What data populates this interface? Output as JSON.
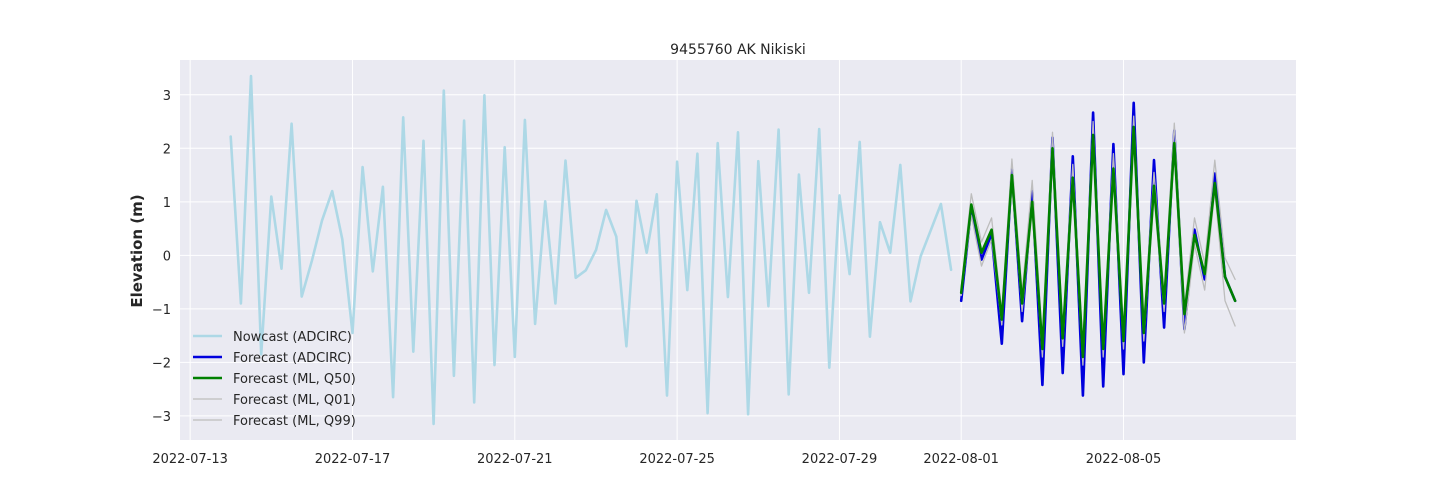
{
  "chart_data": {
    "type": "line",
    "title": "9455760 AK Nikiski",
    "xlabel": "",
    "ylabel": "Elevation (m)",
    "xlim": [
      "2022-07-12T18:00",
      "2022-08-09T06:00"
    ],
    "ylim": [
      -3.45,
      3.65
    ],
    "xticks": [
      "2022-07-13",
      "2022-07-17",
      "2022-07-21",
      "2022-07-25",
      "2022-07-29",
      "2022-08-01",
      "2022-08-05"
    ],
    "yticks": [
      -3,
      -2,
      -1,
      0,
      1,
      2,
      3
    ],
    "ytick_labels": [
      "−3",
      "−2",
      "−1",
      "0",
      "1",
      "2",
      "3"
    ],
    "grid": true,
    "background_color": "#eaeaf2",
    "legend": {
      "position": "lower-left"
    },
    "series": [
      {
        "name": "Nowcast (ADCIRC)",
        "color": "#add8e6",
        "style": "thick",
        "x": [
          "2022-07-14T00:00",
          "2022-07-14T06:00",
          "2022-07-14T12:00",
          "2022-07-14T18:00",
          "2022-07-15T00:00",
          "2022-07-15T06:00",
          "2022-07-15T12:00",
          "2022-07-15T18:00",
          "2022-07-16T00:00",
          "2022-07-16T06:00",
          "2022-07-16T12:00",
          "2022-07-16T18:00",
          "2022-07-17T00:00",
          "2022-07-17T06:00",
          "2022-07-17T12:00",
          "2022-07-17T18:00",
          "2022-07-18T00:00",
          "2022-07-18T06:00",
          "2022-07-18T12:00",
          "2022-07-18T18:00",
          "2022-07-19T00:00",
          "2022-07-19T06:00",
          "2022-07-19T12:00",
          "2022-07-19T18:00",
          "2022-07-20T00:00",
          "2022-07-20T06:00",
          "2022-07-20T12:00",
          "2022-07-20T18:00",
          "2022-07-21T00:00",
          "2022-07-21T06:00",
          "2022-07-21T12:00",
          "2022-07-21T18:00",
          "2022-07-22T00:00",
          "2022-07-22T06:00",
          "2022-07-22T12:00",
          "2022-07-22T18:00",
          "2022-07-23T00:00",
          "2022-07-23T06:00",
          "2022-07-23T12:00",
          "2022-07-23T18:00",
          "2022-07-24T00:00",
          "2022-07-24T06:00",
          "2022-07-24T12:00",
          "2022-07-24T18:00",
          "2022-07-25T00:00",
          "2022-07-25T06:00",
          "2022-07-25T12:00",
          "2022-07-25T18:00",
          "2022-07-26T00:00",
          "2022-07-26T06:00",
          "2022-07-26T12:00",
          "2022-07-26T18:00",
          "2022-07-27T00:00",
          "2022-07-27T06:00",
          "2022-07-27T12:00",
          "2022-07-27T18:00",
          "2022-07-28T00:00",
          "2022-07-28T06:00",
          "2022-07-28T12:00",
          "2022-07-28T18:00",
          "2022-07-29T00:00",
          "2022-07-29T06:00",
          "2022-07-29T12:00",
          "2022-07-29T18:00",
          "2022-07-30T00:00",
          "2022-07-30T06:00",
          "2022-07-30T12:00",
          "2022-07-30T18:00",
          "2022-07-31T00:00",
          "2022-07-31T06:00",
          "2022-07-31T12:00",
          "2022-07-31T18:00"
        ],
        "y": [
          2.22,
          -0.9,
          3.35,
          -1.85,
          1.1,
          -0.25,
          2.46,
          -0.77,
          -0.1,
          0.65,
          1.2,
          0.3,
          -1.45,
          1.65,
          -0.3,
          1.28,
          -2.65,
          2.58,
          -1.8,
          2.14,
          -3.15,
          3.08,
          -2.25,
          2.52,
          -2.75,
          2.99,
          -2.05,
          2.02,
          -1.9,
          2.53,
          -1.28,
          1.01,
          -0.9,
          1.77,
          -0.42,
          -0.28,
          0.1,
          0.85,
          0.35,
          -1.7,
          1.02,
          0.05,
          1.14,
          -2.62,
          1.75,
          -0.65,
          1.9,
          -2.95,
          2.1,
          -0.78,
          2.3,
          -2.97,
          1.76,
          -0.95,
          2.35,
          -2.6,
          1.51,
          -0.7,
          2.36,
          -2.1,
          1.12,
          -0.35,
          2.12,
          -1.52,
          0.62,
          0.05,
          1.69,
          -0.86,
          -0.02,
          0.47,
          0.96,
          -0.27
        ]
      },
      {
        "name": "Forecast (ADCIRC)",
        "color": "#0000dd",
        "style": "thick",
        "x": [
          "2022-08-01T00:00",
          "2022-08-01T06:00",
          "2022-08-01T12:00",
          "2022-08-01T18:00",
          "2022-08-02T00:00",
          "2022-08-02T06:00",
          "2022-08-02T12:00",
          "2022-08-02T18:00",
          "2022-08-03T00:00",
          "2022-08-03T06:00",
          "2022-08-03T12:00",
          "2022-08-03T18:00",
          "2022-08-04T00:00",
          "2022-08-04T06:00",
          "2022-08-04T12:00",
          "2022-08-04T18:00",
          "2022-08-05T00:00",
          "2022-08-05T06:00",
          "2022-08-05T12:00",
          "2022-08-05T18:00",
          "2022-08-06T00:00",
          "2022-08-06T06:00",
          "2022-08-06T12:00",
          "2022-08-06T18:00",
          "2022-08-07T00:00",
          "2022-08-07T06:00",
          "2022-08-07T12:00",
          "2022-08-07T18:00"
        ],
        "y": [
          -0.85,
          0.9,
          -0.08,
          0.4,
          -1.65,
          1.6,
          -1.23,
          1.2,
          -2.42,
          2.2,
          -2.2,
          1.85,
          -2.62,
          2.67,
          -2.45,
          2.08,
          -2.22,
          2.85,
          -2.0,
          1.78,
          -1.35,
          2.33,
          -1.38,
          0.48,
          -0.45,
          1.53,
          -0.4,
          -0.85
        ]
      },
      {
        "name": "Forecast (ML, Q50)",
        "color": "#008000",
        "style": "thick",
        "x": [
          "2022-08-01T00:00",
          "2022-08-01T06:00",
          "2022-08-01T12:00",
          "2022-08-01T18:00",
          "2022-08-02T00:00",
          "2022-08-02T06:00",
          "2022-08-02T12:00",
          "2022-08-02T18:00",
          "2022-08-03T00:00",
          "2022-08-03T06:00",
          "2022-08-03T12:00",
          "2022-08-03T18:00",
          "2022-08-04T00:00",
          "2022-08-04T06:00",
          "2022-08-04T12:00",
          "2022-08-04T18:00",
          "2022-08-05T00:00",
          "2022-08-05T06:00",
          "2022-08-05T12:00",
          "2022-08-05T18:00",
          "2022-08-06T00:00",
          "2022-08-06T06:00",
          "2022-08-06T12:00",
          "2022-08-06T18:00",
          "2022-08-07T00:00",
          "2022-08-07T06:00",
          "2022-08-07T12:00",
          "2022-08-07T18:00"
        ],
        "y": [
          -0.7,
          0.95,
          0.05,
          0.48,
          -1.2,
          1.5,
          -0.9,
          1.0,
          -1.75,
          2.0,
          -1.55,
          1.45,
          -1.9,
          2.25,
          -1.75,
          1.62,
          -1.6,
          2.4,
          -1.45,
          1.3,
          -0.9,
          2.1,
          -1.1,
          0.38,
          -0.35,
          1.35,
          -0.4,
          -0.85
        ]
      },
      {
        "name": "Forecast (ML, Q01)",
        "color": "#bdbdbd",
        "style": "thin",
        "x": [
          "2022-08-01T00:00",
          "2022-08-01T06:00",
          "2022-08-01T12:00",
          "2022-08-01T18:00",
          "2022-08-02T00:00",
          "2022-08-02T06:00",
          "2022-08-02T12:00",
          "2022-08-02T18:00",
          "2022-08-03T00:00",
          "2022-08-03T06:00",
          "2022-08-03T12:00",
          "2022-08-03T18:00",
          "2022-08-04T00:00",
          "2022-08-04T06:00",
          "2022-08-04T12:00",
          "2022-08-04T18:00",
          "2022-08-05T00:00",
          "2022-08-05T06:00",
          "2022-08-05T12:00",
          "2022-08-05T18:00",
          "2022-08-06T00:00",
          "2022-08-06T06:00",
          "2022-08-06T12:00",
          "2022-08-06T18:00",
          "2022-08-07T00:00",
          "2022-08-07T06:00",
          "2022-08-07T12:00",
          "2022-08-07T18:00"
        ],
        "y": [
          -0.75,
          0.75,
          -0.2,
          0.3,
          -1.3,
          1.35,
          -1.05,
          0.85,
          -1.9,
          1.8,
          -1.7,
          1.25,
          -2.05,
          2.05,
          -1.9,
          1.45,
          -1.75,
          2.2,
          -1.6,
          1.1,
          -1.05,
          1.9,
          -1.45,
          0.2,
          -0.65,
          1.2,
          -0.85,
          -1.32
        ]
      },
      {
        "name": "Forecast (ML, Q99)",
        "color": "#bdbdbd",
        "style": "thin",
        "x": [
          "2022-08-01T00:00",
          "2022-08-01T06:00",
          "2022-08-01T12:00",
          "2022-08-01T18:00",
          "2022-08-02T00:00",
          "2022-08-02T06:00",
          "2022-08-02T12:00",
          "2022-08-02T18:00",
          "2022-08-03T00:00",
          "2022-08-03T06:00",
          "2022-08-03T12:00",
          "2022-08-03T18:00",
          "2022-08-04T00:00",
          "2022-08-04T06:00",
          "2022-08-04T12:00",
          "2022-08-04T18:00",
          "2022-08-05T00:00",
          "2022-08-05T06:00",
          "2022-08-05T12:00",
          "2022-08-05T18:00",
          "2022-08-06T00:00",
          "2022-08-06T06:00",
          "2022-08-06T12:00",
          "2022-08-06T18:00",
          "2022-08-07T00:00",
          "2022-08-07T06:00",
          "2022-08-07T12:00",
          "2022-08-07T18:00"
        ],
        "y": [
          -0.6,
          1.15,
          0.25,
          0.7,
          -1.05,
          1.8,
          -0.7,
          1.4,
          -1.55,
          2.3,
          -1.35,
          1.7,
          -1.7,
          2.5,
          -1.55,
          1.9,
          -1.4,
          2.6,
          -1.25,
          1.55,
          -0.75,
          2.47,
          -0.95,
          0.7,
          -0.15,
          1.78,
          -0.05,
          -0.45
        ]
      }
    ]
  }
}
